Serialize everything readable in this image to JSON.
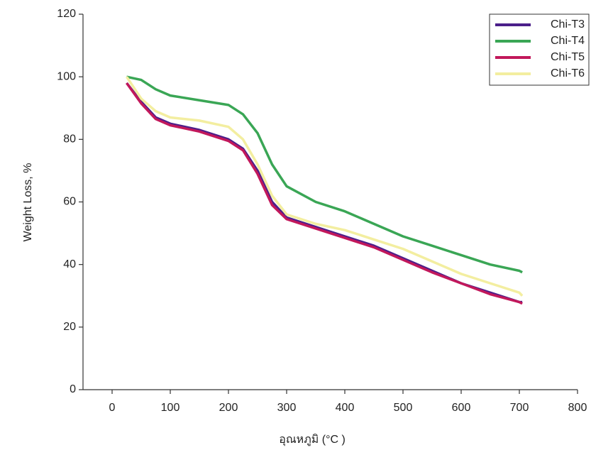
{
  "chart_data": {
    "type": "line",
    "x_label": "อุณหภูมิ (°C )",
    "y_label": "Weight Loss, %",
    "x": [
      25,
      50,
      75,
      100,
      150,
      200,
      225,
      250,
      275,
      300,
      350,
      400,
      450,
      500,
      550,
      600,
      650,
      700,
      705
    ],
    "series": [
      {
        "name": "Chi-T3",
        "color": "#4b1f8a",
        "values": [
          98,
          92,
          87,
          85,
          83,
          80,
          77,
          70,
          60,
          55,
          52,
          49,
          46,
          42,
          38,
          34,
          31,
          28,
          28
        ]
      },
      {
        "name": "Chi-T4",
        "color": "#3aa655",
        "values": [
          100,
          99,
          96,
          94,
          92.5,
          91,
          88,
          82,
          72,
          65,
          60,
          57,
          53,
          49,
          46,
          43,
          40,
          38,
          37.5
        ]
      },
      {
        "name": "Chi-T5",
        "color": "#c2185b",
        "values": [
          98,
          91.5,
          86.5,
          84.5,
          82.5,
          79.5,
          76.5,
          69,
          59,
          54.5,
          51.5,
          48.5,
          45.5,
          41.5,
          37.5,
          34,
          30.5,
          28,
          27.5
        ]
      },
      {
        "name": "Chi-T6",
        "color": "#f3eea0",
        "values": [
          100,
          93,
          89,
          87,
          86,
          84,
          80,
          72,
          62,
          56,
          53,
          51,
          48,
          45,
          41,
          37,
          34,
          31,
          30
        ]
      }
    ],
    "xlim": [
      -50,
      800
    ],
    "ylim": [
      0,
      120
    ],
    "xticks": [
      0,
      100,
      200,
      300,
      400,
      500,
      600,
      700,
      800
    ],
    "yticks": [
      0,
      20,
      40,
      60,
      80,
      100,
      120
    ],
    "legend": "top-right"
  }
}
